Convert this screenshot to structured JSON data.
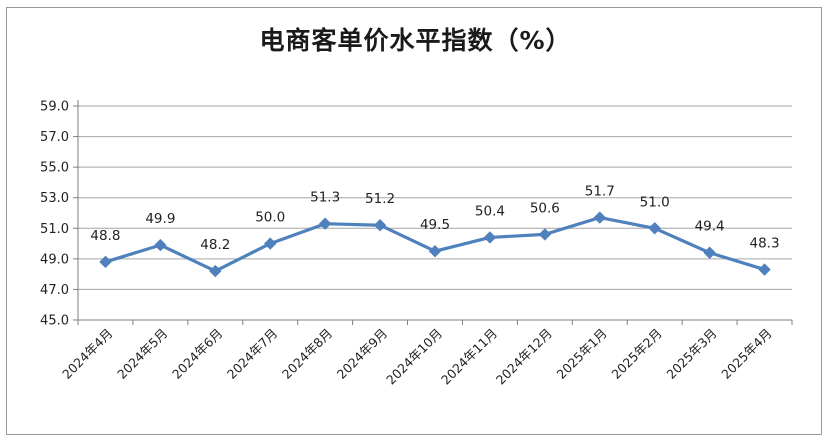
{
  "chart_data": {
    "type": "line",
    "title": "电商客单价水平指数（%）",
    "categories": [
      "2024年4月",
      "2024年5月",
      "2024年6月",
      "2024年7月",
      "2024年8月",
      "2024年9月",
      "2024年10月",
      "2024年11月",
      "2024年12月",
      "2025年1月",
      "2025年2月",
      "2025年3月",
      "2025年4月"
    ],
    "series": [
      {
        "values": [
          48.8,
          49.9,
          48.2,
          50.0,
          51.3,
          51.2,
          49.5,
          50.4,
          50.6,
          51.7,
          51.0,
          49.4,
          48.3
        ],
        "labels": [
          "48.8",
          "49.9",
          "48.2",
          "50.0",
          "51.3",
          "51.2",
          "49.5",
          "50.4",
          "50.6",
          "51.7",
          "51.0",
          "49.4",
          "48.3"
        ],
        "color": "#4f81bd"
      }
    ],
    "y_ticks": [
      "45.0",
      "47.0",
      "49.0",
      "51.0",
      "53.0",
      "55.0",
      "57.0",
      "59.0"
    ],
    "ylim": [
      45,
      59
    ],
    "grid": true,
    "legend": "none",
    "xlabel": "",
    "ylabel": ""
  }
}
